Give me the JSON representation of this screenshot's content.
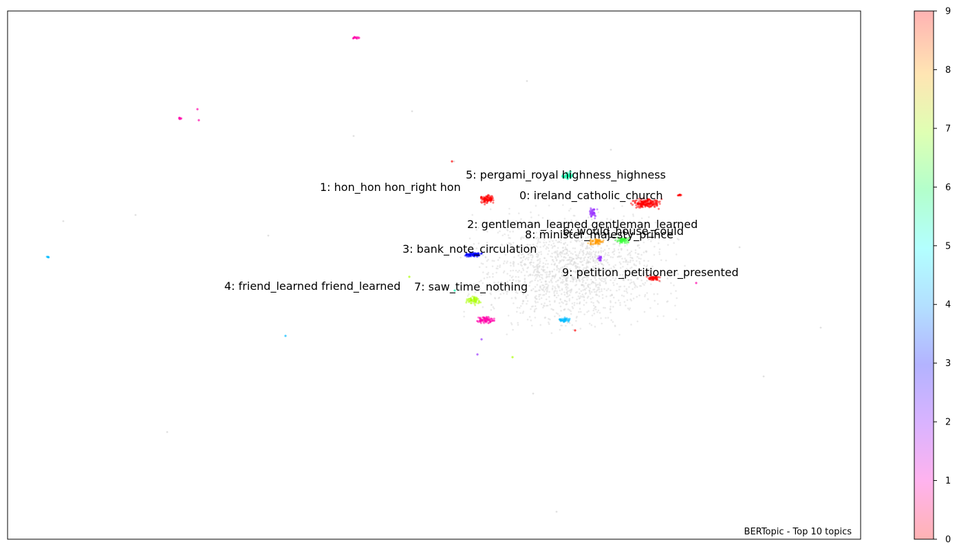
{
  "chart_data": {
    "type": "scatter",
    "title": "",
    "xlabel": "",
    "ylabel": "",
    "axis_ticks_visible": false,
    "grid": false,
    "watermark": "BERTopic - Top 10 topics",
    "colorbar": {
      "ticks": [
        "0",
        "1",
        "2",
        "3",
        "4",
        "5",
        "6",
        "7",
        "8",
        "9"
      ],
      "range": [
        0,
        9
      ],
      "colormap": "hsv",
      "alpha": 0.3
    },
    "background_points_color": "#d9d9d9",
    "topic_labels": [
      {
        "topic": 0,
        "text": "0: ireland_catholic_church",
        "color": "#ff0000"
      },
      {
        "topic": 1,
        "text": "1: hon_hon hon_right hon",
        "color": "#ff0000"
      },
      {
        "topic": 2,
        "text": "2: gentleman_learned gentleman_learned",
        "color": "#9933ff"
      },
      {
        "topic": 3,
        "text": "3: bank_note_circulation",
        "color": "#0000ff"
      },
      {
        "topic": 4,
        "text": "4: friend_learned friend_learned",
        "color": "#00bbff"
      },
      {
        "topic": 5,
        "text": "5: pergami_royal highness_highness",
        "color": "#00ffaa"
      },
      {
        "topic": 6,
        "text": "6: would_house_could",
        "color": "#33ff33"
      },
      {
        "topic": 7,
        "text": "7: saw_time_nothing",
        "color": "#aaff00"
      },
      {
        "topic": 8,
        "text": "8: minister_majesty_prince",
        "color": "#ff9900"
      },
      {
        "topic": 9,
        "text": "9: petition_petitioner_presented",
        "color": "#ff0000"
      }
    ]
  }
}
